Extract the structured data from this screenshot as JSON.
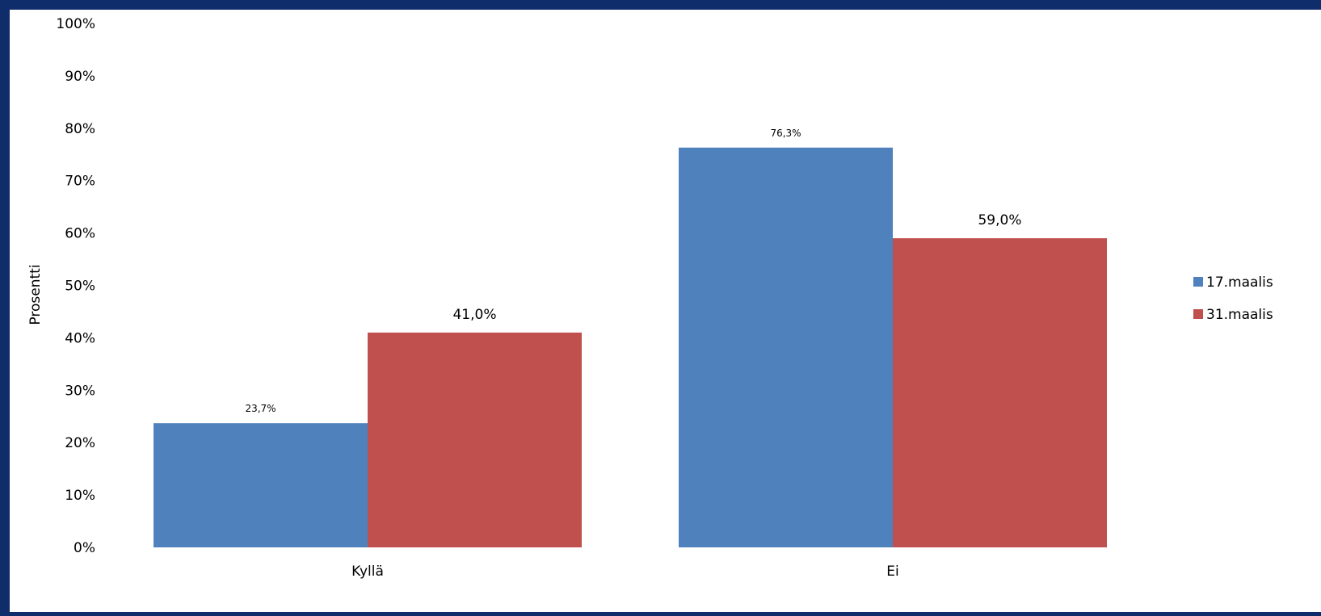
{
  "chart_data": {
    "type": "bar",
    "title": "",
    "xlabel": "",
    "ylabel": "Prosentti",
    "categories": [
      "Kyllä",
      "Ei"
    ],
    "series": [
      {
        "name": "17.maalis",
        "color": "#4f81bd",
        "values": [
          23.7,
          76.3
        ],
        "data_labels": [
          "23,7%",
          "76,3%"
        ]
      },
      {
        "name": "31.maalis",
        "color": "#c0504d",
        "values": [
          41.0,
          59.0
        ],
        "data_labels": [
          "41,0%",
          "59,0%"
        ]
      }
    ],
    "ylim": [
      0,
      100
    ],
    "yticks": [
      0,
      10,
      20,
      30,
      40,
      50,
      60,
      70,
      80,
      90,
      100
    ],
    "ytick_labels": [
      "0%",
      "10%",
      "20%",
      "30%",
      "40%",
      "50%",
      "60%",
      "70%",
      "80%",
      "90%",
      "100%"
    ],
    "grid": false,
    "legend": "right",
    "frame_color": "#0f2c6b"
  }
}
